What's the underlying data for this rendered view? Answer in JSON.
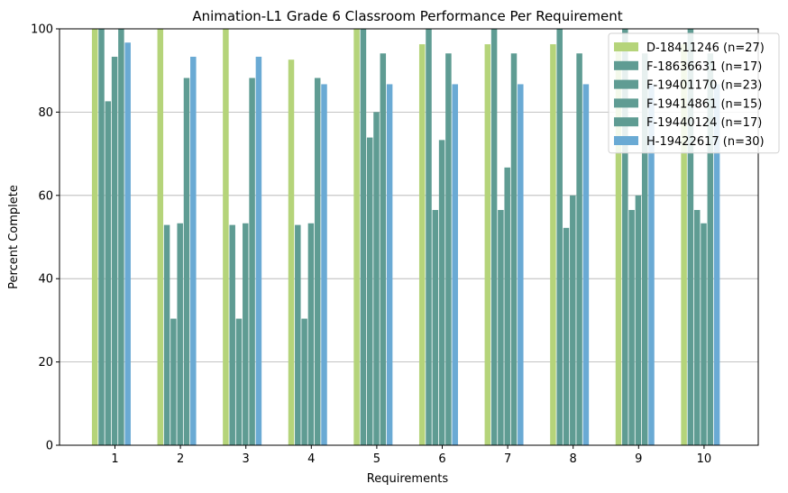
{
  "chart_data": {
    "type": "bar",
    "title": "Animation-L1 Grade 6 Classroom Performance Per Requirement",
    "xlabel": "Requirements",
    "ylabel": "Percent Complete",
    "categories": [
      "1",
      "2",
      "3",
      "4",
      "5",
      "6",
      "7",
      "8",
      "9",
      "10"
    ],
    "ylim": [
      0,
      100
    ],
    "yticks": [
      0,
      20,
      40,
      60,
      80,
      100
    ],
    "grid": "horizontal",
    "legend_position": "top-right",
    "series": [
      {
        "name": "D-18411246 (n=27)",
        "color": "#b5d47a",
        "values": [
          100,
          100,
          100,
          92.6,
          100,
          96.3,
          96.3,
          96.3,
          96.3,
          96.3
        ]
      },
      {
        "name": "F-18636631 (n=17)",
        "color": "#5f9c93",
        "values": [
          100,
          52.9,
          52.9,
          52.9,
          100,
          100,
          100,
          100,
          100,
          100
        ]
      },
      {
        "name": "F-19401170 (n=23)",
        "color": "#5f9c93",
        "values": [
          82.6,
          30.4,
          30.4,
          30.4,
          73.9,
          56.5,
          56.5,
          52.2,
          56.5,
          56.5
        ]
      },
      {
        "name": "F-19414861 (n=15)",
        "color": "#5f9c93",
        "values": [
          93.3,
          53.3,
          53.3,
          53.3,
          80.0,
          73.3,
          66.7,
          60.0,
          60.0,
          53.3
        ]
      },
      {
        "name": "F-19440124 (n=17)",
        "color": "#5f9c93",
        "values": [
          100,
          88.2,
          88.2,
          88.2,
          94.1,
          94.1,
          94.1,
          94.1,
          94.1,
          94.1
        ]
      },
      {
        "name": "H-19422617 (n=30)",
        "color": "#6aaad4",
        "values": [
          96.7,
          93.3,
          93.3,
          86.7,
          86.7,
          86.7,
          86.7,
          86.7,
          86.7,
          86.7
        ]
      }
    ]
  }
}
